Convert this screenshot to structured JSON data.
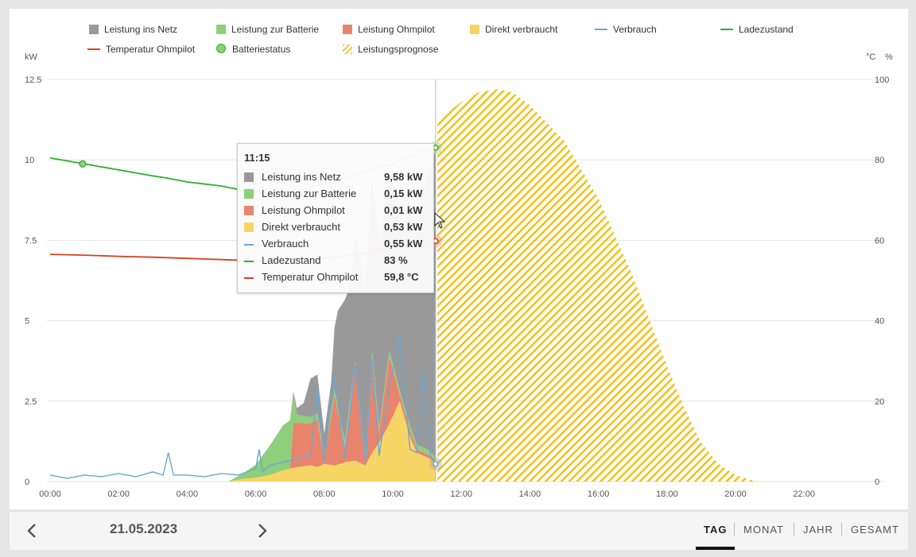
{
  "legend": [
    {
      "label": "Leistung ins Netz",
      "kind": "box",
      "color": "#999999"
    },
    {
      "label": "Leistung zur Batterie",
      "kind": "box",
      "color": "#8fce7b"
    },
    {
      "label": "Leistung Ohmpilot",
      "kind": "box",
      "color": "#e9846c"
    },
    {
      "label": "Direkt verbraucht",
      "kind": "box",
      "color": "#f7d565"
    },
    {
      "label": "Verbrauch",
      "kind": "line",
      "color": "#6aa8d4"
    },
    {
      "label": "Ladezustand",
      "kind": "line",
      "color": "#2eae2e"
    },
    {
      "label": "Temperatur Ohmpilot",
      "kind": "line",
      "color": "#d4421e"
    },
    {
      "label": "Batteriestatus",
      "kind": "dot",
      "color": "#8fce7b"
    },
    {
      "label": "Leistungsprognose",
      "kind": "hatch",
      "color": "#f2c21b"
    }
  ],
  "axes": {
    "left_unit": "kW",
    "right_unit_temp": "°C",
    "right_unit_pct": "%",
    "left_ticks": [
      "0",
      "2.5",
      "5",
      "7.5",
      "10",
      "12.5"
    ],
    "right_ticks": [
      "0",
      "20",
      "40",
      "60",
      "80",
      "100"
    ],
    "x_ticks": [
      "00:00",
      "02:00",
      "04:00",
      "06:00",
      "08:00",
      "10:00",
      "12:00",
      "14:00",
      "16:00",
      "18:00",
      "20:00",
      "22:00"
    ]
  },
  "chart_data": {
    "type": "area",
    "x_unit": "hours",
    "ylim_left": [
      0,
      12.5
    ],
    "ylim_right": [
      0,
      100
    ],
    "xlim": [
      0,
      24
    ],
    "cursor_time": 11.25,
    "series": [
      {
        "name": "Direkt verbraucht",
        "axis": "left",
        "color": "#f7d565",
        "x": [
          5.2,
          5.6,
          6.0,
          6.4,
          6.8,
          7.2,
          7.6,
          7.8,
          8.0,
          8.3,
          8.6,
          8.9,
          9.2,
          9.4,
          9.6,
          9.9,
          10.2,
          10.5,
          10.7,
          10.9,
          11.1,
          11.25
        ],
        "y": [
          0,
          0.08,
          0.12,
          0.2,
          0.35,
          0.45,
          0.5,
          0.45,
          0.55,
          0.5,
          0.6,
          0.65,
          0.5,
          0.9,
          1.2,
          1.8,
          2.5,
          1.4,
          0.9,
          0.8,
          0.7,
          0.53
        ]
      },
      {
        "name": "Leistung Ohmpilot",
        "axis": "left",
        "color": "#e9846c",
        "x": [
          5.2,
          6.0,
          7.0,
          7.1,
          7.6,
          7.8,
          8.0,
          8.3,
          8.6,
          8.9,
          9.2,
          9.4,
          9.6,
          9.9,
          10.2,
          10.5,
          10.7,
          10.9,
          11.1,
          11.25
        ],
        "y": [
          0,
          0,
          0,
          1.4,
          1.3,
          1.5,
          0.1,
          2.2,
          0.5,
          2.9,
          0.2,
          3.0,
          0.3,
          2.1,
          0.2,
          0.2,
          0.1,
          0.1,
          0.1,
          0.01
        ]
      },
      {
        "name": "Leistung zur Batterie",
        "axis": "left",
        "color": "#8fce7b",
        "x": [
          5.2,
          5.6,
          6.0,
          6.4,
          6.8,
          7.0,
          7.2,
          7.6,
          8.0,
          8.6,
          9.2,
          9.9,
          10.5,
          11.0,
          11.25
        ],
        "y": [
          0,
          0.15,
          0.4,
          0.9,
          1.4,
          1.5,
          0.25,
          0.2,
          0.15,
          0.15,
          0.15,
          0.15,
          0.15,
          0.15,
          0.15
        ]
      },
      {
        "name": "Leistung ins Netz",
        "axis": "left",
        "color": "#999999",
        "x": [
          5.2,
          6.5,
          7.0,
          7.4,
          7.6,
          7.8,
          8.0,
          8.2,
          8.4,
          8.6,
          8.8,
          9.0,
          9.3,
          9.6,
          9.9,
          10.2,
          10.5,
          10.8,
          11.0,
          11.25
        ],
        "y": [
          0,
          0,
          0,
          0.4,
          1.2,
          1.2,
          0.7,
          0.9,
          3.0,
          4.4,
          3.3,
          4.6,
          5.3,
          5.7,
          5.5,
          5.3,
          6.8,
          7.5,
          8.4,
          9.58
        ]
      },
      {
        "name": "Verbrauch",
        "axis": "left",
        "color": "#6aa8d4",
        "x": [
          0,
          0.5,
          1.0,
          1.5,
          2.0,
          2.5,
          3.0,
          3.3,
          3.45,
          3.6,
          4.0,
          4.5,
          5.0,
          5.5,
          6.0,
          6.1,
          6.2,
          6.4,
          6.8,
          7.2,
          7.6,
          7.8,
          8.0,
          8.3,
          8.6,
          8.9,
          9.2,
          9.4,
          9.6,
          9.9,
          10.2,
          10.5,
          10.7,
          10.9,
          11.1,
          11.25
        ],
        "y": [
          0.2,
          0.1,
          0.2,
          0.15,
          0.25,
          0.15,
          0.3,
          0.2,
          0.9,
          0.2,
          0.2,
          0.15,
          0.25,
          0.2,
          0.4,
          1.0,
          0.3,
          0.5,
          0.6,
          0.7,
          0.8,
          2.9,
          0.6,
          3.3,
          0.7,
          3.6,
          0.6,
          3.8,
          0.8,
          2.9,
          4.6,
          1.0,
          0.9,
          3.4,
          0.8,
          0.55
        ]
      },
      {
        "name": "Ladezustand",
        "axis": "right",
        "color": "#2eae2e",
        "x": [
          0,
          1.0,
          2.0,
          3.0,
          3.4,
          4.0,
          5.0,
          5.6,
          6.0,
          6.6,
          7.2,
          8.0,
          9.0,
          10.0,
          10.8,
          11.25
        ],
        "y": [
          80.5,
          79,
          77.5,
          76,
          75.5,
          74.5,
          73.5,
          72.5,
          72,
          71.8,
          72.5,
          74,
          76.5,
          79,
          82,
          83
        ]
      },
      {
        "name": "Temperatur Ohmpilot",
        "axis": "right",
        "color": "#d4421e",
        "x": [
          0,
          1.0,
          2.0,
          3.0,
          4.0,
          5.0,
          5.6,
          6.0,
          7.0,
          8.0,
          9.0,
          10.0,
          10.5,
          11.0,
          11.25
        ],
        "y": [
          56.5,
          56.3,
          56,
          55.8,
          55.5,
          55.2,
          55,
          54.8,
          55,
          55.5,
          56.5,
          58,
          58.5,
          59.2,
          59.8
        ]
      },
      {
        "name": "Leistungsprognose",
        "axis": "left",
        "color": "#f2c21b",
        "x": [
          11.3,
          11.5,
          12.0,
          12.5,
          13.0,
          13.5,
          14.0,
          15.0,
          16.0,
          17.0,
          18.0,
          18.5,
          19.0,
          19.5,
          20.0,
          20.5,
          20.6
        ],
        "y": [
          11.1,
          11.4,
          11.8,
          12.1,
          12.2,
          12.1,
          11.7,
          10.6,
          8.8,
          6.4,
          3.6,
          2.3,
          1.2,
          0.55,
          0.2,
          0.04,
          0
        ]
      }
    ],
    "markers": [
      {
        "name": "Batteriestatus",
        "x": 0.95,
        "y": 79,
        "axis": "right"
      }
    ]
  },
  "tooltip": {
    "time": "11:15",
    "rows": [
      {
        "label": "Leistung ins Netz",
        "value": "9,58 kW",
        "kind": "box",
        "color": "#999999"
      },
      {
        "label": "Leistung zur Batterie",
        "value": "0,15 kW",
        "kind": "box",
        "color": "#8fce7b"
      },
      {
        "label": "Leistung Ohmpilot",
        "value": "0,01 kW",
        "kind": "box",
        "color": "#e9846c"
      },
      {
        "label": "Direkt verbraucht",
        "value": "0,53 kW",
        "kind": "box",
        "color": "#f7d565"
      },
      {
        "label": "Verbrauch",
        "value": "0,55 kW",
        "kind": "line",
        "color": "#6aa8d4"
      },
      {
        "label": "Ladezustand",
        "value": "83  %",
        "kind": "line",
        "color": "#2eae2e"
      },
      {
        "label": "Temperatur Ohmpilot",
        "value": "59,8 °C",
        "kind": "line",
        "color": "#d4421e"
      }
    ]
  },
  "footer": {
    "date": "21.05.2023",
    "periods": [
      "TAG",
      "MONAT",
      "JAHR",
      "GESAMT"
    ],
    "active_period": "TAG"
  }
}
